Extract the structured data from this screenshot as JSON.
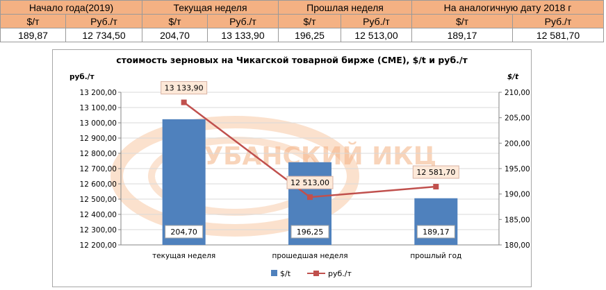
{
  "table": {
    "groups": [
      "Начало года(2019)",
      "Текущая неделя",
      "Прошлая неделя",
      "На аналогичную дату 2018 г"
    ],
    "subheaders": [
      "$/т",
      "Руб./т",
      "$/т",
      "Руб./т",
      "$/т",
      "Руб./т",
      "$/т",
      "Руб./т"
    ],
    "values": [
      "189,87",
      "12 734,50",
      "204,70",
      "13 133,90",
      "196,25",
      "12 513,00",
      "189,17",
      "12 581,70"
    ]
  },
  "watermark": {
    "text": "КУБАНСКИЙ ИКЦ"
  },
  "chart_data": {
    "type": "bar",
    "title": "стоимость зерновых на Чикагской товарной бирже (СМЕ), $/t и руб./т",
    "categories": [
      "текущая неделя",
      "прошедшая неделя",
      "прошлый год"
    ],
    "series": [
      {
        "name": "$/t",
        "type": "bar",
        "axis": "right",
        "color": "#4f81bd",
        "values": [
          204.7,
          196.25,
          189.17
        ],
        "labels": [
          "204,70",
          "196,25",
          "189,17"
        ]
      },
      {
        "name": "руб./т",
        "type": "line",
        "axis": "left",
        "color": "#c0504d",
        "values": [
          13133.9,
          12513.0,
          12581.7
        ],
        "labels": [
          "13 133,90",
          "12 513,00",
          "12 581,70"
        ]
      }
    ],
    "left_axis": {
      "label": "руб./т",
      "min": 12200,
      "max": 13200,
      "step": 100,
      "ticks": [
        "12 200,00",
        "12 300,00",
        "12 400,00",
        "12 500,00",
        "12 600,00",
        "12 700,00",
        "12 800,00",
        "12 900,00",
        "13 000,00",
        "13 100,00",
        "13 200,00"
      ]
    },
    "right_axis": {
      "label": "$/t",
      "min": 180,
      "max": 210,
      "step": 5,
      "ticks": [
        "180,00",
        "185,00",
        "190,00",
        "195,00",
        "200,00",
        "205,00",
        "210,00"
      ]
    },
    "legend": {
      "position": "bottom",
      "items": [
        "$/t",
        "руб./т"
      ]
    },
    "grid": true
  }
}
